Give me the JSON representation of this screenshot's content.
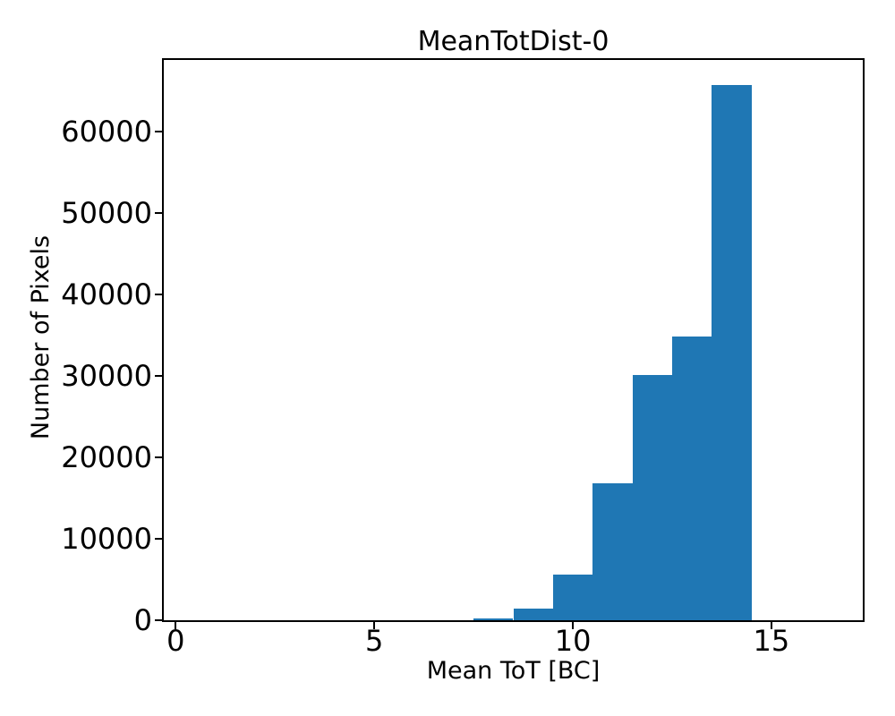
{
  "figure": {
    "background": "#ffffff",
    "text_color": "#000000"
  },
  "chart_data": {
    "type": "bar",
    "subtype": "histogram",
    "title": "MeanTotDist-0",
    "xlabel": "Mean ToT [BC]",
    "ylabel": "Number of Pixels",
    "bar_color": "#1f77b4",
    "bin_edges": [
      7.5,
      8.5,
      9.5,
      10.5,
      11.5,
      12.5,
      13.5,
      14.5
    ],
    "bin_centers": [
      8,
      9,
      10,
      11,
      12,
      13,
      14
    ],
    "values": [
      220,
      1400,
      5650,
      16800,
      30100,
      34800,
      65750
    ],
    "xlim": [
      -0.3,
      17.3
    ],
    "ylim": [
      0,
      68800
    ],
    "x_ticks": [
      0,
      5,
      10,
      15
    ],
    "y_ticks": [
      0,
      10000,
      20000,
      30000,
      40000,
      50000,
      60000
    ],
    "grid": false,
    "legend": null
  }
}
